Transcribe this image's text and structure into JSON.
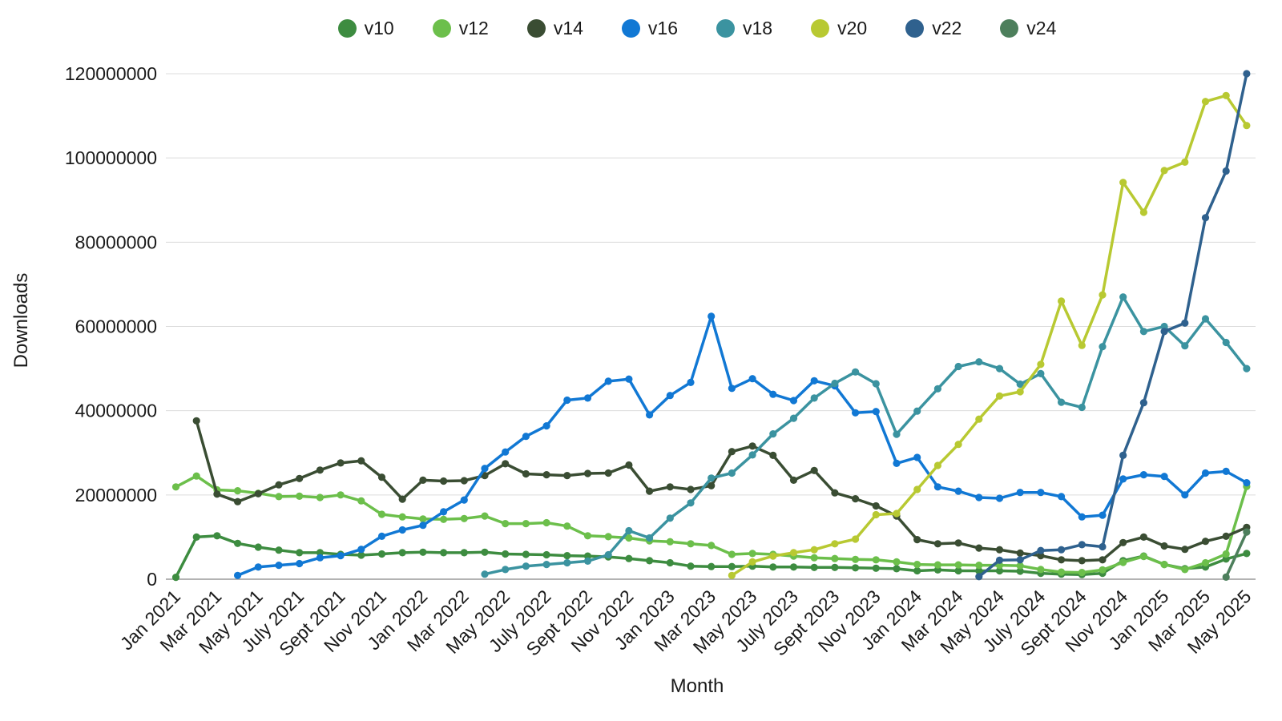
{
  "chart_data": {
    "type": "line",
    "title": "",
    "xlabel": "Month",
    "ylabel": "Downloads",
    "ylim": [
      0,
      120000000
    ],
    "y_ticks": [
      0,
      20000000,
      40000000,
      60000000,
      80000000,
      100000000,
      120000000
    ],
    "grid": "horizontal",
    "legend_position": "top",
    "months": [
      "Jan 2021",
      "Feb 2021",
      "Mar 2021",
      "Apr 2021",
      "May 2021",
      "June 2021",
      "July 2021",
      "Aug 2021",
      "Sept 2021",
      "Oct 2021",
      "Nov 2021",
      "Dec 2021",
      "Jan 2022",
      "Feb 2022",
      "Mar 2022",
      "Apr 2022",
      "May 2022",
      "June 2022",
      "July 2022",
      "Aug 2022",
      "Sept 2022",
      "Oct 2022",
      "Nov 2022",
      "Dec 2022",
      "Jan 2023",
      "Feb 2023",
      "Mar 2023",
      "Apr 2023",
      "May 2023",
      "June 2023",
      "July 2023",
      "Aug 2023",
      "Sept 2023",
      "Oct 2023",
      "Nov 2023",
      "Dec 2023",
      "Jan 2024",
      "Feb 2024",
      "Mar 2024",
      "Apr 2024",
      "May 2024",
      "June 2024",
      "July 2024",
      "Aug 2024",
      "Sept 2024",
      "Oct 2024",
      "Nov 2024",
      "Dec 2024",
      "Jan 2025",
      "Feb 2025",
      "Mar 2025",
      "Apr 2025",
      "May 2025"
    ],
    "x_tick_every": 2,
    "x_tick_labels": [
      "Jan 2021",
      "Mar 2021",
      "May 2021",
      "July 2021",
      "Sept 2021",
      "Nov 2021",
      "Jan 2022",
      "Mar 2022",
      "May 2022",
      "July 2022",
      "Sept 2022",
      "Nov 2022",
      "Jan 2023",
      "Mar 2023",
      "May 2023",
      "July 2023",
      "Sept 2023",
      "Nov 2023",
      "Jan 2024",
      "Mar 2024",
      "May 2024",
      "July 2024",
      "Sept 2024",
      "Nov 2024",
      "Jan 2025",
      "Mar 2025",
      "May 2025"
    ],
    "series": [
      {
        "name": "v10",
        "color": "#3d8c40",
        "values": [
          450000,
          10000000,
          10300000,
          8500000,
          7600000,
          6900000,
          6300000,
          6300000,
          5900000,
          5700000,
          6000000,
          6300000,
          6400000,
          6300000,
          6300000,
          6400000,
          6000000,
          5900000,
          5800000,
          5600000,
          5500000,
          5300000,
          4900000,
          4400000,
          3900000,
          3100000,
          3000000,
          3000000,
          3100000,
          2900000,
          2900000,
          2800000,
          2800000,
          2700000,
          2600000,
          2500000,
          2000000,
          2200000,
          2000000,
          2000000,
          2000000,
          1900000,
          1400000,
          1200000,
          1100000,
          1400000,
          4400000,
          5500000,
          3500000,
          2500000,
          2900000,
          4800000,
          6100000
        ]
      },
      {
        "name": "v12",
        "color": "#6cbf4b",
        "values": [
          21900000,
          24500000,
          21200000,
          21000000,
          20400000,
          19600000,
          19700000,
          19400000,
          20000000,
          18600000,
          15400000,
          14800000,
          14300000,
          14200000,
          14400000,
          15000000,
          13200000,
          13200000,
          13400000,
          12600000,
          10300000,
          10100000,
          9800000,
          9100000,
          8900000,
          8400000,
          8000000,
          5900000,
          6100000,
          5900000,
          5500000,
          5100000,
          4900000,
          4700000,
          4600000,
          4100000,
          3500000,
          3400000,
          3400000,
          3300000,
          3300000,
          3200000,
          2300000,
          1700000,
          1600000,
          2200000,
          4000000,
          5400000,
          3500000,
          2300000,
          3900000,
          6000000,
          22000000
        ]
      },
      {
        "name": "v14",
        "color": "#3a4d33",
        "values": [
          null,
          37600000,
          20200000,
          18400000,
          20300000,
          22400000,
          23900000,
          25900000,
          27600000,
          28100000,
          24200000,
          19000000,
          23500000,
          23300000,
          23400000,
          24600000,
          27400000,
          25000000,
          24800000,
          24600000,
          25100000,
          25200000,
          27100000,
          20900000,
          21900000,
          21300000,
          22200000,
          30300000,
          31600000,
          29400000,
          23500000,
          25800000,
          20500000,
          19100000,
          17400000,
          15000000,
          9400000,
          8400000,
          8600000,
          7400000,
          7000000,
          6200000,
          5600000,
          4600000,
          4400000,
          4600000,
          8700000,
          10000000,
          7900000,
          7100000,
          9000000,
          10200000,
          12300000
        ]
      },
      {
        "name": "v16",
        "color": "#1178d4",
        "values": [
          null,
          null,
          null,
          900000,
          2900000,
          3300000,
          3700000,
          5100000,
          5600000,
          7100000,
          10200000,
          11700000,
          12800000,
          16000000,
          18800000,
          26300000,
          30200000,
          33900000,
          36400000,
          42500000,
          43000000,
          47000000,
          47500000,
          39000000,
          43600000,
          46700000,
          62400000,
          45300000,
          47600000,
          43900000,
          42400000,
          47100000,
          45900000,
          39500000,
          39800000,
          27500000,
          28900000,
          21900000,
          20900000,
          19400000,
          19200000,
          20600000,
          20600000,
          19600000,
          14800000,
          15200000,
          23800000,
          24800000,
          24400000,
          20000000,
          25200000,
          25600000,
          22900000
        ]
      },
      {
        "name": "v18",
        "color": "#3b93a0",
        "values": [
          null,
          null,
          null,
          null,
          null,
          null,
          null,
          null,
          null,
          null,
          null,
          null,
          null,
          null,
          null,
          1200000,
          2300000,
          3100000,
          3500000,
          3900000,
          4300000,
          5800000,
          11500000,
          9800000,
          14500000,
          18100000,
          24000000,
          25200000,
          29500000,
          34500000,
          38200000,
          43000000,
          46500000,
          49200000,
          46400000,
          34400000,
          39900000,
          45200000,
          50500000,
          51600000,
          50000000,
          46300000,
          48800000,
          42000000,
          40800000,
          55200000,
          67000000,
          58800000,
          60000000,
          55400000,
          61800000,
          56200000,
          50000000
        ]
      },
      {
        "name": "v20",
        "color": "#b8c932",
        "values": [
          null,
          null,
          null,
          null,
          null,
          null,
          null,
          null,
          null,
          null,
          null,
          null,
          null,
          null,
          null,
          null,
          null,
          null,
          null,
          null,
          null,
          null,
          null,
          null,
          null,
          null,
          null,
          900000,
          4100000,
          5500000,
          6300000,
          7000000,
          8400000,
          9500000,
          15300000,
          15600000,
          21300000,
          27000000,
          32000000,
          38000000,
          43500000,
          44500000,
          51000000,
          66000000,
          55500000,
          67500000,
          94200000,
          87100000,
          97000000,
          99000000,
          113400000,
          114800000,
          107700000
        ]
      },
      {
        "name": "v22",
        "color": "#2f618e",
        "values": [
          null,
          null,
          null,
          null,
          null,
          null,
          null,
          null,
          null,
          null,
          null,
          null,
          null,
          null,
          null,
          null,
          null,
          null,
          null,
          null,
          null,
          null,
          null,
          null,
          null,
          null,
          null,
          null,
          null,
          null,
          null,
          null,
          null,
          null,
          null,
          null,
          null,
          null,
          null,
          600000,
          4500000,
          4600000,
          6800000,
          7000000,
          8200000,
          7700000,
          29400000,
          41900000,
          58800000,
          60800000,
          85800000,
          96900000,
          120000000
        ]
      },
      {
        "name": "v24",
        "color": "#4d7f5c",
        "values": [
          null,
          null,
          null,
          null,
          null,
          null,
          null,
          null,
          null,
          null,
          null,
          null,
          null,
          null,
          null,
          null,
          null,
          null,
          null,
          null,
          null,
          null,
          null,
          null,
          null,
          null,
          null,
          null,
          null,
          null,
          null,
          null,
          null,
          null,
          null,
          null,
          null,
          null,
          null,
          null,
          null,
          null,
          null,
          null,
          null,
          null,
          null,
          null,
          null,
          null,
          null,
          500000,
          11200000
        ]
      }
    ]
  }
}
